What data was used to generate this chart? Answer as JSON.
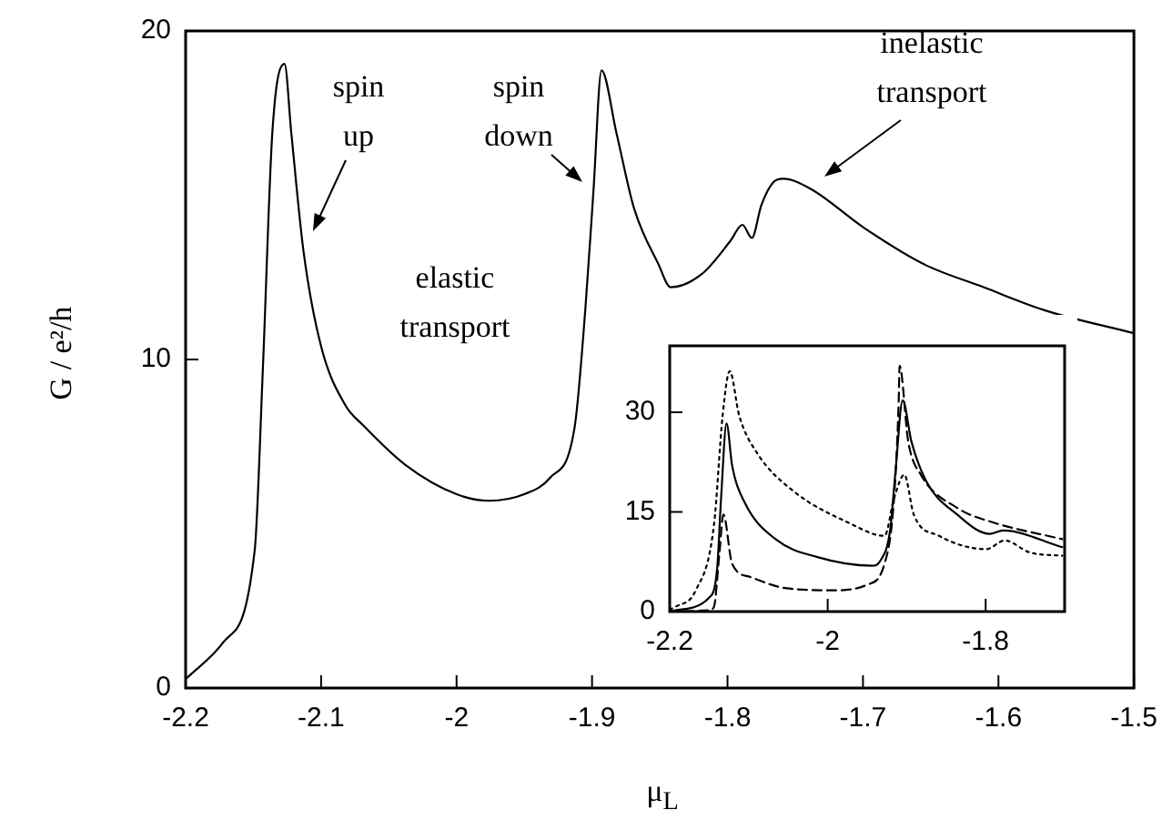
{
  "chart_data": [
    {
      "type": "line",
      "xlabel": "μ$_{L}$",
      "ylabel": "G / e²/h",
      "xlim": [
        -2.2,
        -1.5
      ],
      "ylim": [
        0,
        20
      ],
      "xticks": [
        -2.2,
        -2.1,
        -2,
        -1.9,
        -1.8,
        -1.7,
        -1.6,
        -1.5
      ],
      "yticks": [
        0,
        10,
        20
      ],
      "marker": "none",
      "line_style": "solid",
      "series": [
        {
          "color": "#000000",
          "x": [
            -2.2,
            -2.172,
            -2.149,
            -2.143,
            -2.136,
            -2.127,
            -2.122,
            -2.113,
            -2.1,
            -2.082,
            -2.069,
            -2.038,
            -2.0,
            -1.976,
            -1.95,
            -1.931,
            -1.913,
            -1.905,
            -1.899,
            -1.893,
            -1.882,
            -1.869,
            -1.851,
            -1.842,
            -1.819,
            -1.798,
            -1.789,
            -1.782,
            -1.775,
            -1.766,
            -1.759,
            -1.739,
            -1.699,
            -1.655,
            -1.611,
            -1.566,
            -1.5
          ],
          "values": [
            0.27,
            1.4,
            4.2,
            9.7,
            16.9,
            19.0,
            16.9,
            13.3,
            10.4,
            8.6,
            8.0,
            6.8,
            5.9,
            5.7,
            5.9,
            6.4,
            7.9,
            11.5,
            15.1,
            18.8,
            16.9,
            14.6,
            12.9,
            12.2,
            12.6,
            13.6,
            14.1,
            13.7,
            14.7,
            15.4,
            15.5,
            15.2,
            14.0,
            12.9,
            12.2,
            11.5,
            10.8
          ]
        }
      ],
      "annotations": [
        "spin up",
        "spin down",
        "inelastic transport",
        "elastic transport"
      ]
    },
    {
      "type": "line",
      "xlim": [
        -2.2,
        -1.7
      ],
      "ylim": [
        0,
        40
      ],
      "xticks": [
        -2.2,
        -2,
        -1.8
      ],
      "yticks": [
        0,
        15,
        30
      ],
      "marker": "none",
      "series": [
        {
          "color": "#000000",
          "line_style": "solid",
          "x": [
            -2.2,
            -2.193,
            -2.151,
            -2.14,
            -2.135,
            -2.128,
            -2.121,
            -2.105,
            -2.066,
            -2.013,
            -1.944,
            -1.933,
            -1.921,
            -1.914,
            -1.905,
            -1.894,
            -1.875,
            -1.836,
            -1.795,
            -1.778,
            -1.703
          ],
          "values": [
            0,
            0.2,
            2,
            6.4,
            17,
            28.3,
            22,
            16.4,
            10.9,
            8.2,
            6.9,
            7.7,
            12.2,
            21.3,
            31.8,
            25.6,
            19.6,
            14.6,
            11.7,
            12.2,
            9.7
          ]
        },
        {
          "color": "#000000",
          "line_style": "dashed",
          "x": [
            -2.2,
            -2.15,
            -2.144,
            -2.137,
            -2.132,
            -2.121,
            -2.098,
            -2.052,
            -1.99,
            -1.951,
            -1.928,
            -1.916,
            -1.91,
            -1.909,
            -1.898,
            -1.882,
            -1.836,
            -1.79,
            -1.703
          ],
          "values": [
            0,
            0.2,
            0.7,
            8.9,
            14.6,
            7.2,
            5.2,
            3.5,
            3.2,
            4,
            7.2,
            17,
            32,
            37,
            25.6,
            20.6,
            15.6,
            13.4,
            10.9
          ]
        },
        {
          "color": "#000000",
          "line_style": "dotted",
          "x": [
            -2.2,
            -2.193,
            -2.167,
            -2.144,
            -2.133,
            -2.124,
            -2.112,
            -2.089,
            -2.043,
            -1.974,
            -1.928,
            -1.916,
            -1.903,
            -1.891,
            -1.859,
            -1.799,
            -1.776,
            -1.744,
            -1.703
          ],
          "values": [
            0.3,
            0.7,
            3.2,
            13,
            29.5,
            36.2,
            29.5,
            23.8,
            18.1,
            13.4,
            11.4,
            17,
            20.6,
            14.6,
            11.4,
            9.4,
            10.7,
            8.9,
            8.4
          ]
        }
      ]
    }
  ]
}
